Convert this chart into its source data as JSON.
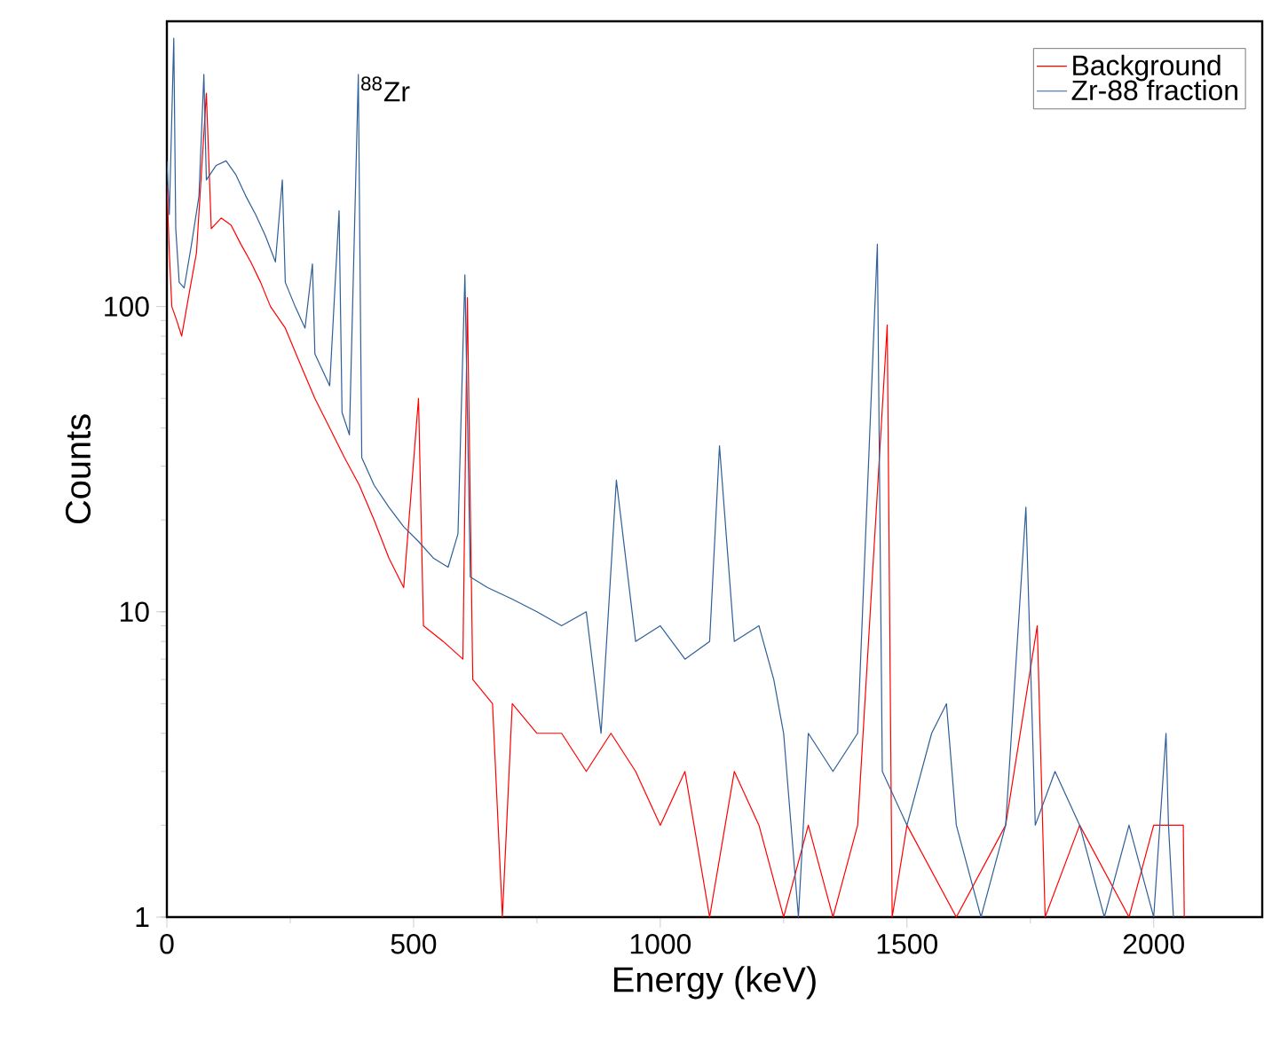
{
  "chart_data": {
    "type": "line",
    "xlabel": "Energy (keV)",
    "ylabel": "Counts",
    "log": "y",
    "grid": false,
    "legend": "top right",
    "marker": "none",
    "line_style": "solid",
    "xlim": [
      0,
      2220
    ],
    "ylim": [
      1,
      860
    ],
    "xticks": [
      0,
      500,
      1000,
      1500,
      2000
    ],
    "yticks": [
      1,
      10,
      100
    ],
    "annotations": [
      {
        "text": "$^{88}$Zr",
        "x": 388,
        "y": 576
      }
    ],
    "series": [
      {
        "name": "Background",
        "color": "#ff0000",
        "x": [
          0,
          5,
          10,
          20,
          30,
          45,
          60,
          80,
          90,
          110,
          130,
          150,
          170,
          190,
          210,
          240,
          270,
          300,
          330,
          360,
          390,
          420,
          450,
          480,
          510,
          520,
          560,
          600,
          609,
          620,
          660,
          680,
          700,
          750,
          800,
          850,
          900,
          950,
          1000,
          1050,
          1100,
          1150,
          1200,
          1250,
          1300,
          1350,
          1400,
          1460,
          1470,
          1500,
          1600,
          1700,
          1764,
          1780,
          1850,
          1950,
          2000,
          2060,
          2062
        ],
        "values": [
          250,
          150,
          100,
          90,
          80,
          110,
          150,
          500,
          180,
          195,
          185,
          160,
          140,
          120,
          100,
          85,
          65,
          50,
          40,
          32,
          26,
          20,
          15,
          12,
          50,
          9,
          8,
          7,
          107,
          6,
          5,
          1,
          5,
          4,
          4,
          3,
          4,
          3,
          2,
          3,
          1,
          3,
          2,
          1,
          2,
          1,
          2,
          87,
          1,
          2,
          1,
          2,
          9,
          1,
          2,
          1,
          2,
          2,
          1
        ]
      },
      {
        "name": "Zr-88 fraction",
        "color": "#2f5f98",
        "x": [
          0,
          5,
          14,
          18,
          25,
          35,
          50,
          65,
          75,
          80,
          100,
          120,
          140,
          160,
          180,
          200,
          220,
          234,
          240,
          260,
          280,
          295,
          300,
          330,
          349,
          355,
          370,
          388,
          395,
          420,
          450,
          480,
          510,
          540,
          570,
          590,
          604,
          615,
          650,
          700,
          750,
          800,
          850,
          880,
          911,
          950,
          1000,
          1050,
          1100,
          1120,
          1150,
          1200,
          1230,
          1250,
          1280,
          1300,
          1350,
          1400,
          1440,
          1450,
          1500,
          1550,
          1580,
          1600,
          1650,
          1700,
          1741,
          1760,
          1800,
          1850,
          1900,
          1950,
          2000,
          2025,
          2030,
          2040
        ],
        "values": [
          300,
          200,
          757,
          180,
          120,
          115,
          160,
          230,
          576,
          260,
          290,
          300,
          270,
          230,
          200,
          170,
          140,
          260,
          120,
          100,
          85,
          138,
          70,
          55,
          206,
          45,
          38,
          576,
          32,
          26,
          22,
          19,
          17,
          15,
          14,
          18,
          127,
          13,
          12,
          11,
          10,
          9,
          10,
          4,
          27,
          8,
          9,
          7,
          8,
          35,
          8,
          9,
          6,
          4,
          1,
          4,
          3,
          4,
          160,
          3,
          2,
          4,
          5,
          2,
          1,
          2,
          22,
          2,
          3,
          2,
          1,
          2,
          1,
          4,
          2,
          1
        ]
      }
    ]
  }
}
